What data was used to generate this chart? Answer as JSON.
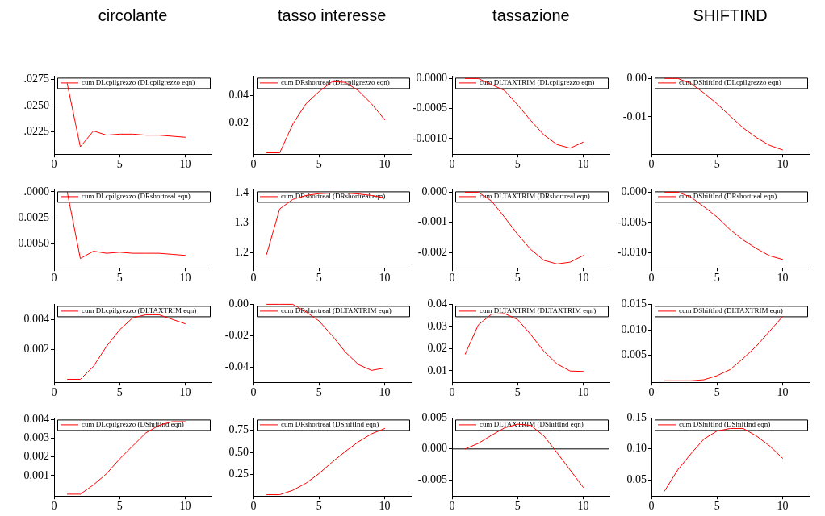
{
  "chart_data": [
    {
      "type": "line",
      "title": "circolante",
      "x": [
        1,
        2,
        3,
        4,
        5,
        6,
        7,
        8,
        9,
        10
      ],
      "xlim": [
        0,
        12
      ],
      "xticks": [
        0,
        5,
        10
      ],
      "ylim": [
        0.0204,
        0.0278
      ],
      "yticks": [
        {
          "value": 0.0225,
          "label": ".0225"
        },
        {
          "value": 0.025,
          "label": ".0250"
        },
        {
          "value": 0.0275,
          "label": ".0275"
        }
      ],
      "legend": "top",
      "marker": "none",
      "line_style": "solid",
      "series": [
        {
          "name": "cum DLcpilgrezzo (DLcpilgrezzo eqn)",
          "color": "#ff0000",
          "values": [
            0.0271,
            0.0211,
            0.0226,
            0.0222,
            0.0223,
            0.0223,
            0.0222,
            0.0222,
            0.0221,
            0.022
          ]
        }
      ]
    },
    {
      "type": "line",
      "title": "tasso interesse",
      "x": [
        1,
        2,
        3,
        4,
        5,
        6,
        7,
        8,
        9,
        10
      ],
      "xlim": [
        0,
        12
      ],
      "xticks": [
        0,
        5,
        10
      ],
      "ylim": [
        -0.0025,
        0.054
      ],
      "yticks": [
        0.02,
        0.04
      ],
      "legend": "top",
      "marker": "none",
      "line_style": "solid",
      "series": [
        {
          "name": "cum DRshortreal (DLcpilgrezzo eqn)",
          "color": "#ff0000",
          "values": [
            -0.0015,
            -0.0015,
            0.0193,
            0.034,
            0.0428,
            0.05,
            0.0495,
            0.0434,
            0.034,
            0.0224
          ]
        }
      ]
    },
    {
      "type": "line",
      "title": "tassazione",
      "x": [
        1,
        2,
        3,
        4,
        5,
        6,
        7,
        8,
        9,
        10
      ],
      "xlim": [
        0,
        12
      ],
      "xticks": [
        0,
        5,
        10
      ],
      "ylim": [
        -0.00126,
        4e-05
      ],
      "yticks": [
        {
          "value": -0.001,
          "label": "-0.0010"
        },
        {
          "value": -0.0005,
          "label": "-0.0005"
        },
        {
          "value": 0,
          "label": "0.0000"
        }
      ],
      "legend": "top",
      "marker": "none",
      "line_style": "solid",
      "series": [
        {
          "name": "cum DLTAXTRIM (DLcpilgrezzo eqn)",
          "color": "#ff0000",
          "values": [
            0,
            0,
            -0.0001,
            -0.0002,
            -0.00044,
            -0.0007,
            -0.00094,
            -0.0011,
            -0.00116,
            -0.00106
          ]
        }
      ]
    },
    {
      "type": "line",
      "title": "SHIFTIND",
      "x": [
        1,
        2,
        3,
        4,
        5,
        6,
        7,
        8,
        9,
        10
      ],
      "xlim": [
        0,
        12
      ],
      "xticks": [
        0,
        5,
        10
      ],
      "ylim": [
        -0.0197,
        0.0006
      ],
      "yticks": [
        {
          "value": -0.01,
          "label": "-0.01"
        },
        {
          "value": 0,
          "label": "0.00"
        }
      ],
      "legend": "top",
      "marker": "none",
      "line_style": "solid",
      "series": [
        {
          "name": "cum DShiftInd (DLcpilgrezzo eqn)",
          "color": "#ff0000",
          "values": [
            0,
            0,
            -0.0013,
            -0.0038,
            -0.0066,
            -0.0098,
            -0.0129,
            -0.0154,
            -0.0174,
            -0.0186
          ]
        }
      ]
    },
    {
      "type": "line",
      "x": [
        1,
        2,
        3,
        4,
        5,
        6,
        7,
        8,
        9,
        10
      ],
      "xlim": [
        0,
        12
      ],
      "xticks": [
        0,
        5,
        10
      ],
      "ylim": [
        0.0073,
        -0.0002
      ],
      "yticks": [
        {
          "value": 0,
          "label": ".0000"
        },
        {
          "value": 0.0025,
          "label": "0.0025"
        },
        {
          "value": 0.005,
          "label": "0.0050"
        }
      ],
      "legend": "top",
      "marker": "none",
      "line_style": "solid",
      "series": [
        {
          "name": "cum DLcpilgrezzo (DRshortreal eqn)",
          "color": "#ff0000",
          "values": [
            0,
            0.0064,
            0.0057,
            0.0059,
            0.0058,
            0.0059,
            0.0059,
            0.0059,
            0.006,
            0.0061
          ]
        }
      ]
    },
    {
      "type": "line",
      "x": [
        1,
        2,
        3,
        4,
        5,
        6,
        7,
        8,
        9,
        10
      ],
      "xlim": [
        0,
        12
      ],
      "xticks": [
        0,
        5,
        10
      ],
      "ylim": [
        1.15,
        1.411
      ],
      "yticks": [
        1.2,
        1.3,
        1.4
      ],
      "legend": "top",
      "marker": "none",
      "line_style": "solid",
      "series": [
        {
          "name": "cum DRshortreal (DRshortreal eqn)",
          "color": "#ff0000",
          "values": [
            1.195,
            1.347,
            1.379,
            1.392,
            1.398,
            1.4,
            1.4,
            1.397,
            1.392,
            1.384
          ]
        }
      ]
    },
    {
      "type": "line",
      "x": [
        1,
        2,
        3,
        4,
        5,
        6,
        7,
        8,
        9,
        10
      ],
      "xlim": [
        0,
        12
      ],
      "xticks": [
        0,
        5,
        10
      ],
      "ylim": [
        -0.00251,
        8e-05
      ],
      "yticks": [
        {
          "value": -0.002,
          "label": "-0.002"
        },
        {
          "value": -0.001,
          "label": "-0.001"
        },
        {
          "value": 0,
          "label": "0.000"
        }
      ],
      "legend": "top",
      "marker": "none",
      "line_style": "solid",
      "series": [
        {
          "name": "cum DLTAXTRIM (DRshortreal eqn)",
          "color": "#ff0000",
          "values": [
            0,
            0,
            -0.00029,
            -0.00083,
            -0.0014,
            -0.0019,
            -0.00226,
            -0.00238,
            -0.00232,
            -0.0021
          ]
        }
      ]
    },
    {
      "type": "line",
      "x": [
        1,
        2,
        3,
        4,
        5,
        6,
        7,
        8,
        9,
        10
      ],
      "xlim": [
        0,
        12
      ],
      "xticks": [
        0,
        5,
        10
      ],
      "ylim": [
        -0.0125,
        0.0004
      ],
      "yticks": [
        {
          "value": -0.01,
          "label": "-0.010"
        },
        {
          "value": -0.005,
          "label": "-0.005"
        },
        {
          "value": 0,
          "label": "0.000"
        }
      ],
      "legend": "top",
      "marker": "none",
      "line_style": "solid",
      "series": [
        {
          "name": "cum DShiftInd (DRshortreal eqn)",
          "color": "#ff0000",
          "values": [
            0,
            0,
            -0.0008,
            -0.0024,
            -0.0041,
            -0.0062,
            -0.0079,
            -0.0093,
            -0.0105,
            -0.0111
          ]
        }
      ]
    },
    {
      "type": "line",
      "x": [
        1,
        2,
        3,
        4,
        5,
        6,
        7,
        8,
        9,
        10
      ],
      "xlim": [
        0,
        12
      ],
      "xticks": [
        0,
        5,
        10
      ],
      "ylim": [
        -0.0002,
        0.005
      ],
      "yticks": [
        0.002,
        0.004
      ],
      "legend": "top",
      "marker": "none",
      "line_style": "solid",
      "series": [
        {
          "name": "cum DLcpilgrezzo (DLTAXTRIM eqn)",
          "color": "#ff0000",
          "values": [
            0,
            0,
            0.00086,
            0.0022,
            0.0033,
            0.0041,
            0.0043,
            0.0043,
            0.004,
            0.0037
          ]
        }
      ]
    },
    {
      "type": "line",
      "x": [
        1,
        2,
        3,
        4,
        5,
        6,
        7,
        8,
        9,
        10
      ],
      "xlim": [
        0,
        12
      ],
      "xticks": [
        0,
        5,
        10
      ],
      "ylim": [
        -0.0496,
        0
      ],
      "yticks": [
        -0.04,
        -0.02,
        {
          "value": 0,
          "label": "0.00"
        }
      ],
      "legend": "top",
      "marker": "none",
      "line_style": "solid",
      "series": [
        {
          "name": "cum DRshortreal (DLTAXTRIM eqn)",
          "color": "#ff0000",
          "values": [
            0,
            0,
            0,
            -0.0048,
            -0.0106,
            -0.02,
            -0.0303,
            -0.0383,
            -0.042,
            -0.0405
          ]
        }
      ]
    },
    {
      "type": "line",
      "x": [
        1,
        2,
        3,
        4,
        5,
        6,
        7,
        8,
        9,
        10
      ],
      "xlim": [
        0,
        12
      ],
      "xticks": [
        0,
        5,
        10
      ],
      "ylim": [
        0.0048,
        0.04
      ],
      "yticks": [
        0.01,
        0.02,
        0.03,
        0.04
      ],
      "legend": "top",
      "marker": "none",
      "line_style": "solid",
      "series": [
        {
          "name": "cum DLTAXTRIM (DLTAXTRIM eqn)",
          "color": "#ff0000",
          "values": [
            0.0175,
            0.0307,
            0.0355,
            0.0358,
            0.0331,
            0.0263,
            0.0188,
            0.0131,
            0.0099,
            0.0097
          ]
        }
      ]
    },
    {
      "type": "line",
      "x": [
        1,
        2,
        3,
        4,
        5,
        6,
        7,
        8,
        9,
        10
      ],
      "xlim": [
        0,
        12
      ],
      "xticks": [
        0,
        5,
        10
      ],
      "ylim": [
        -0.0003,
        0.015
      ],
      "yticks": [
        0.005,
        {
          "value": 0.01,
          "label": "0.010"
        },
        0.015
      ],
      "legend": "top",
      "marker": "none",
      "line_style": "solid",
      "series": [
        {
          "name": "cum DShiftInd (DLTAXTRIM eqn)",
          "color": "#ff0000",
          "values": [
            0,
            0,
            0,
            0.0002,
            0.001,
            0.0022,
            0.0044,
            0.0068,
            0.0097,
            0.0126
          ]
        }
      ]
    },
    {
      "type": "line",
      "x": [
        1,
        2,
        3,
        4,
        5,
        6,
        7,
        8,
        9,
        10
      ],
      "xlim": [
        0,
        12
      ],
      "xticks": [
        0,
        5,
        10
      ],
      "ylim": [
        -0.0001,
        0.0041
      ],
      "yticks": [
        0.001,
        0.002,
        0.003,
        0.004
      ],
      "legend": "top",
      "marker": "none",
      "line_style": "solid",
      "series": [
        {
          "name": "cum DLcpilgrezzo (DShiftInd eqn)",
          "color": "#ff0000",
          "values": [
            0,
            0,
            0.0005,
            0.0011,
            0.0019,
            0.0026,
            0.0033,
            0.0037,
            0.0039,
            0.0039
          ]
        }
      ]
    },
    {
      "type": "line",
      "x": [
        1,
        2,
        3,
        4,
        5,
        6,
        7,
        8,
        9,
        10
      ],
      "xlim": [
        0,
        12
      ],
      "xticks": [
        0,
        5,
        10
      ],
      "ylim": [
        0.005,
        0.89
      ],
      "yticks": [
        0.25,
        {
          "value": 0.5,
          "label": "0.50"
        },
        0.75
      ],
      "legend": "top",
      "marker": "none",
      "line_style": "solid",
      "series": [
        {
          "name": "cum DRshortreal (DShiftInd eqn)",
          "color": "#ff0000",
          "values": [
            0.02,
            0.02,
            0.07,
            0.15,
            0.26,
            0.39,
            0.51,
            0.62,
            0.71,
            0.77
          ]
        }
      ]
    },
    {
      "type": "line",
      "x": [
        1,
        2,
        3,
        4,
        5,
        6,
        7,
        8,
        9,
        10
      ],
      "xlim": [
        0,
        12
      ],
      "xticks": [
        0,
        5,
        10
      ],
      "ylim": [
        -0.0076,
        0.005
      ],
      "yticks": [
        -0.005,
        {
          "value": 0,
          "label": "0.000"
        },
        0.005
      ],
      "legend": "top",
      "marker": "none",
      "line_style": "solid",
      "ref_lines": [
        {
          "axis": "y",
          "value": 0,
          "color": "#000000"
        }
      ],
      "series": [
        {
          "name": "cum DLTAXTRIM (DShiftInd eqn)",
          "color": "#ff0000",
          "values": [
            0,
            0.0009,
            0.0022,
            0.0034,
            0.004,
            0.0038,
            0.0021,
            -0.0006,
            -0.0034,
            -0.0062
          ]
        }
      ]
    },
    {
      "type": "line",
      "x": [
        1,
        2,
        3,
        4,
        5,
        6,
        7,
        8,
        9,
        10
      ],
      "xlim": [
        0,
        12
      ],
      "xticks": [
        0,
        5,
        10
      ],
      "ylim": [
        0.024,
        0.15
      ],
      "yticks": [
        0.05,
        {
          "value": 0.1,
          "label": "0.10"
        },
        0.15
      ],
      "legend": "top",
      "marker": "none",
      "line_style": "solid",
      "series": [
        {
          "name": "cum DShiftInd (DShiftInd eqn)",
          "color": "#ff0000",
          "values": [
            0.032,
            0.066,
            0.092,
            0.116,
            0.129,
            0.133,
            0.133,
            0.121,
            0.105,
            0.085
          ]
        }
      ]
    }
  ]
}
